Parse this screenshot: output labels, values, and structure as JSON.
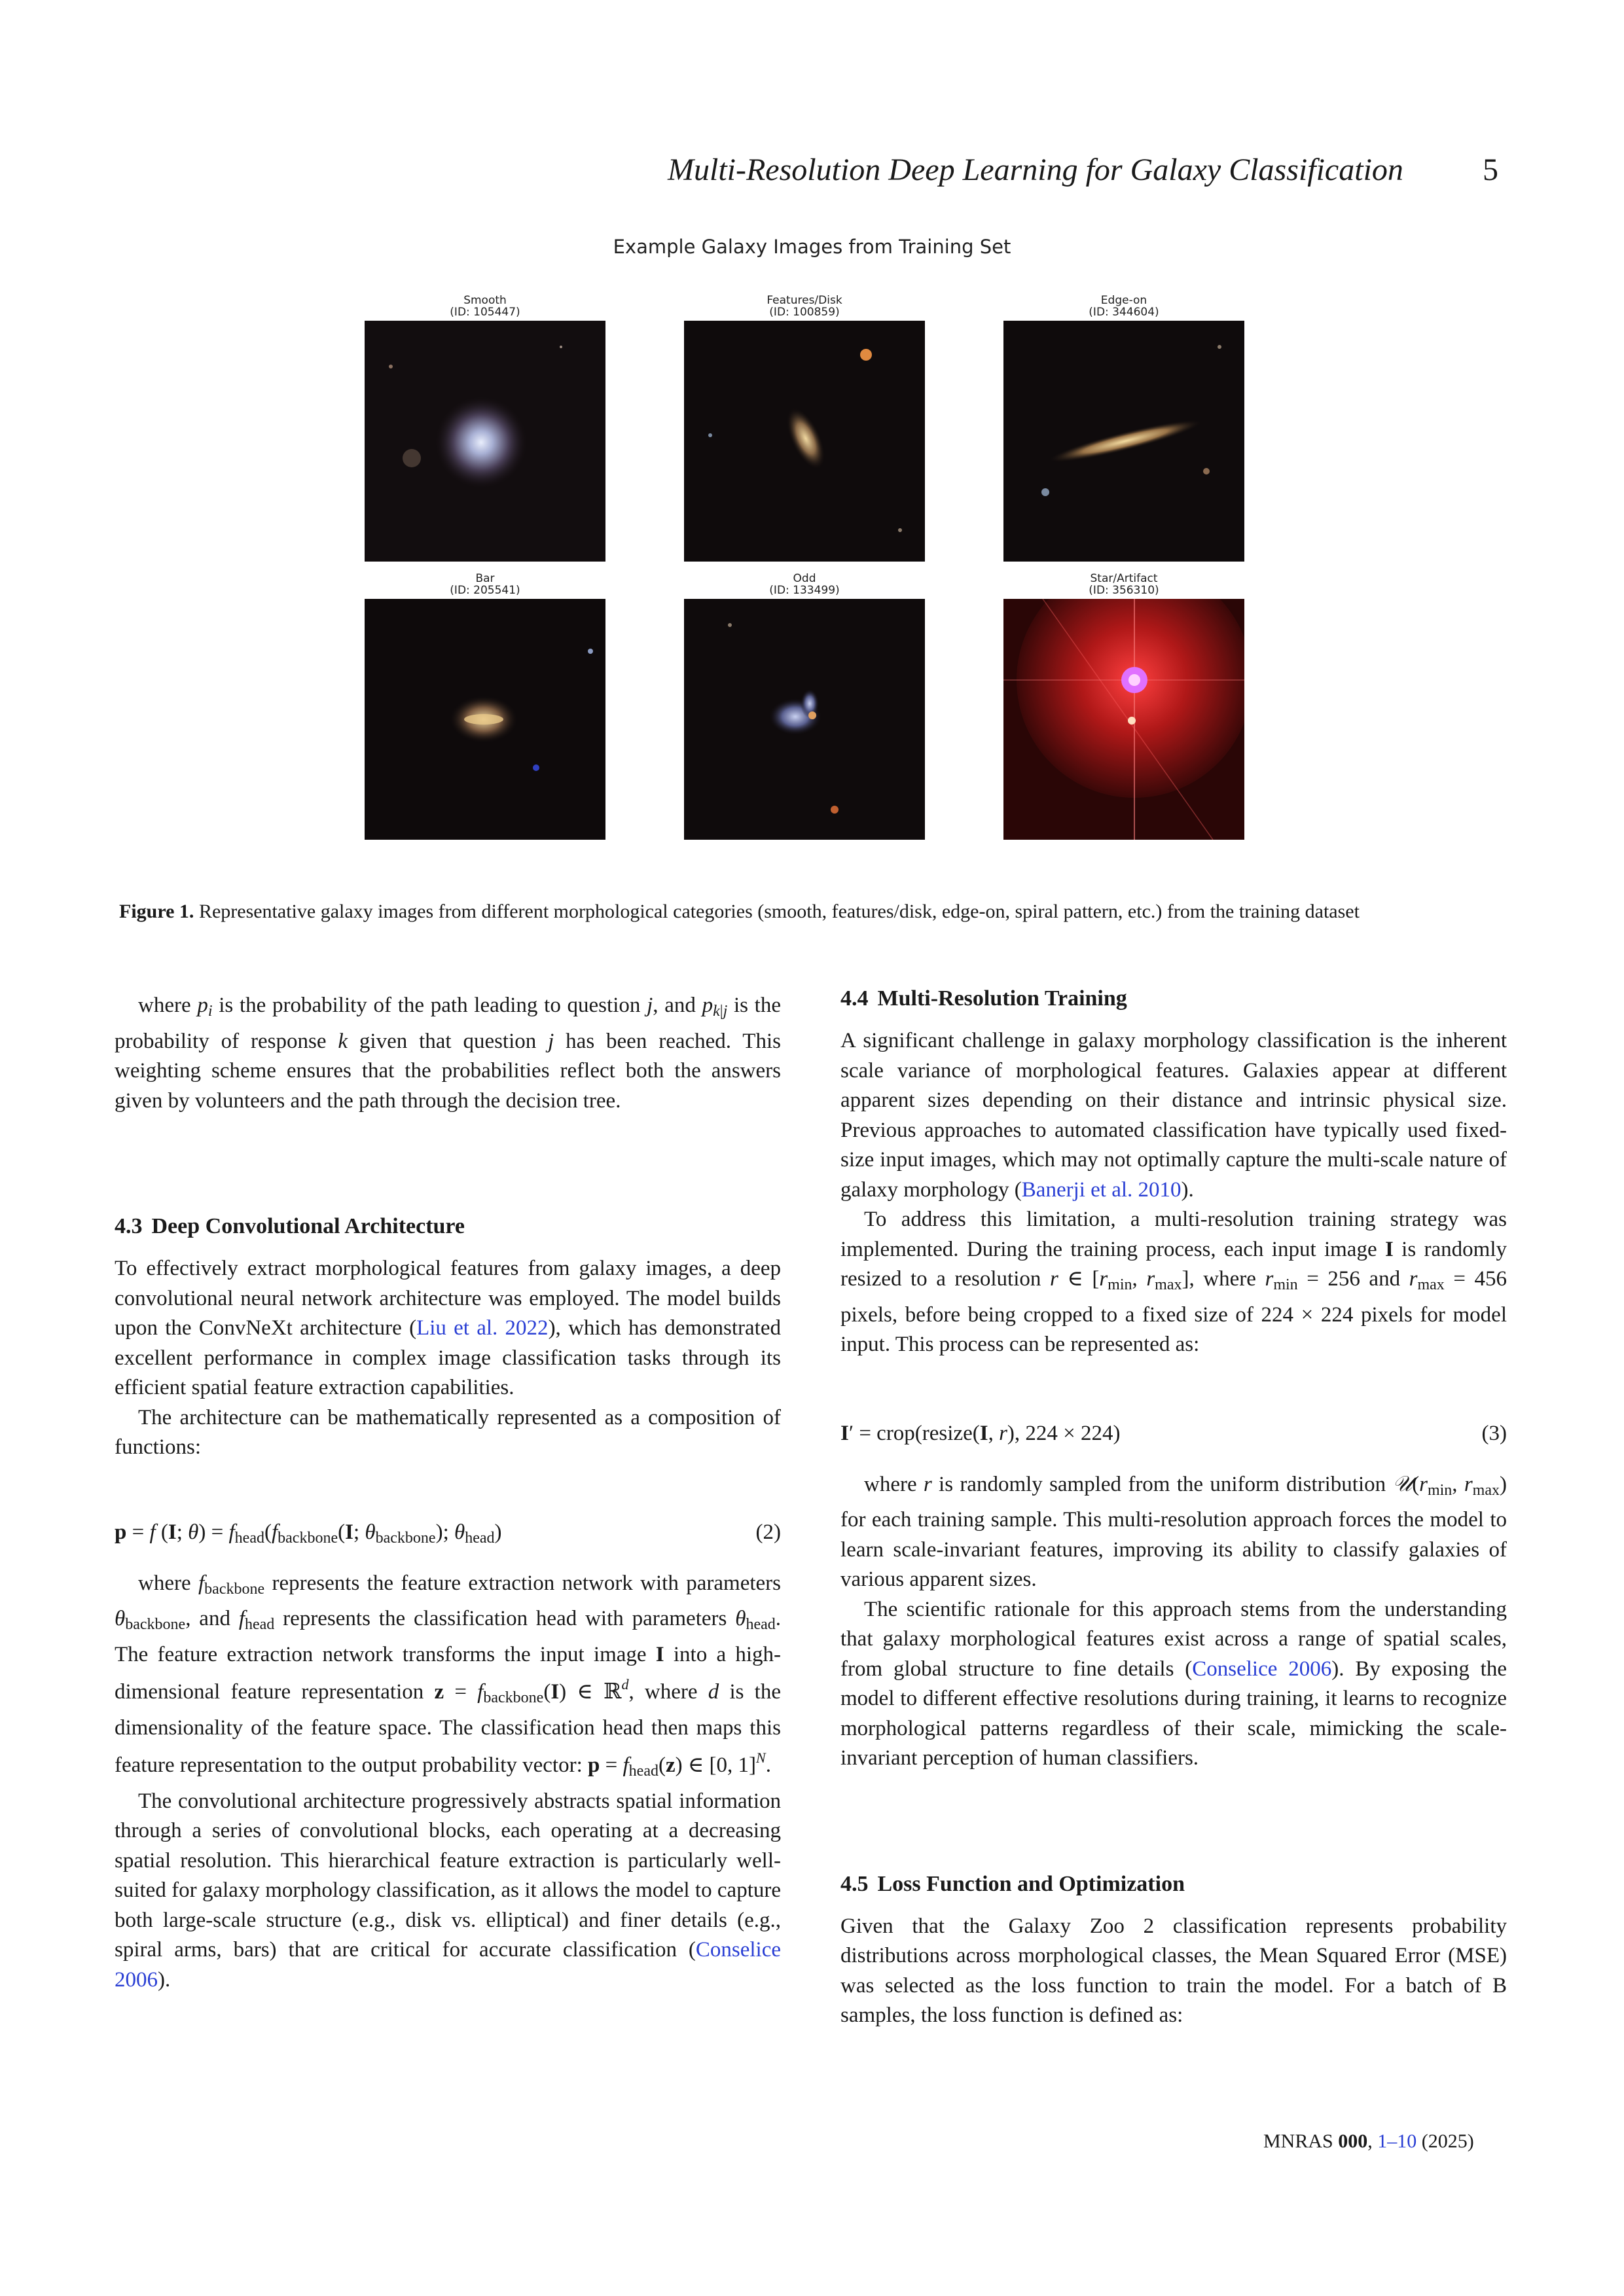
{
  "header": {
    "title": "Multi-Resolution Deep Learning for Galaxy Classification",
    "page": "5"
  },
  "figure": {
    "title": "Example Galaxy Images from Training Set",
    "panels": [
      {
        "label": "Smooth",
        "id": "(ID: 105447)"
      },
      {
        "label": "Features/Disk",
        "id": "(ID: 100859)"
      },
      {
        "label": "Edge-on",
        "id": "(ID: 344604)"
      },
      {
        "label": "Bar",
        "id": "(ID: 205541)"
      },
      {
        "label": "Odd",
        "id": "(ID: 133499)"
      },
      {
        "label": "Star/Artifact",
        "id": "(ID: 356310)"
      }
    ],
    "caption_label": "Figure 1.",
    "caption_text": "Representative galaxy images from different morphological categories (smooth, features/disk, edge-on, spiral pattern, etc.) from the training dataset"
  },
  "left": {
    "p1_a": "where ",
    "p1_b": " is the probability of the path leading to question ",
    "p1_c": ", and ",
    "p1_d": " is the probability of response ",
    "p1_e": " given that question ",
    "p1_f": " has been reached. This weighting scheme ensures that the probabilities reflect both the answers given by volunteers and the path through the decision tree.",
    "sec43_num": "4.3",
    "sec43_title": "Deep Convolutional Architecture",
    "p2_a": "To effectively extract morphological features from galaxy images, a deep convolutional neural network architecture was employed. The model builds upon the ConvNeXt architecture (",
    "p2_cite": "Liu et al. 2022",
    "p2_b": "), which has demonstrated excellent performance in complex image classification tasks through its efficient spatial feature extraction capabilities.",
    "p3": "The architecture can be mathematically represented as a composition of functions:",
    "eq2_num": "(2)",
    "p4_a": "where ",
    "p4_b": " represents the feature extraction network with parameters ",
    "p4_c": ", and ",
    "p4_d": " represents the classification head with parameters ",
    "p4_e": ". The feature extraction network transforms the input image ",
    "p4_f": " into a high-dimensional feature representation ",
    "p4_g": ", where ",
    "p4_h": " is the dimensionality of the feature space. The classification head then maps this feature representation to the output probability vector: ",
    "p5_a": "The convolutional architecture progressively abstracts spatial information through a series of convolutional blocks, each operating at a decreasing spatial resolution. This hierarchical feature extraction is particularly well-suited for galaxy morphology classification, as it allows the model to capture both large-scale structure (e.g., disk vs. elliptical) and finer details (e.g., spiral arms, bars) that are critical for accurate classification (",
    "p5_cite": "Conselice 2006",
    "p5_b": ")."
  },
  "right": {
    "sec44_num": "4.4",
    "sec44_title": "Multi-Resolution Training",
    "p1_a": "A significant challenge in galaxy morphology classification is the inherent scale variance of morphological features. Galaxies appear at different apparent sizes depending on their distance and intrinsic physical size. Previous approaches to automated classification have typically used fixed-size input images, which may not optimally capture the multi-scale nature of galaxy morphology (",
    "p1_cite": "Banerji et al. 2010",
    "p1_b": ").",
    "p2_a": "To address this limitation, a multi-resolution training strategy was implemented. During the training process, each input image ",
    "p2_b": " is randomly resized to a resolution ",
    "p2_c": ", where ",
    "p2_d": " = 256 and ",
    "p2_e": " = 456 pixels, before being cropped to a fixed size of 224 × 224 pixels for model input. This process can be represented as:",
    "eq3_num": "(3)",
    "p3_a": "where ",
    "p3_b": " is randomly sampled from the uniform distribution ",
    "p3_c": " for each training sample. This multi-resolution approach forces the model to learn scale-invariant features, improving its ability to classify galaxies of various apparent sizes.",
    "p4_a": "The scientific rationale for this approach stems from the understanding that galaxy morphological features exist across a range of spatial scales, from global structure to fine details (",
    "p4_cite": "Conselice 2006",
    "p4_b": "). By exposing the model to different effective resolutions during training, it learns to recognize morphological patterns regardless of their scale, mimicking the scale-invariant perception of human classifiers.",
    "sec45_num": "4.5",
    "sec45_title": "Loss Function and Optimization",
    "p5": "Given that the Galaxy Zoo 2 classification represents probability distributions across morphological classes, the Mean Squared Error (MSE) was selected as the loss function to train the model. For a batch of B samples, the loss function is defined as:"
  },
  "footer": {
    "journal": "MNRAS",
    "volume": "000",
    "pages": "1–10",
    "year": "(2025)"
  }
}
